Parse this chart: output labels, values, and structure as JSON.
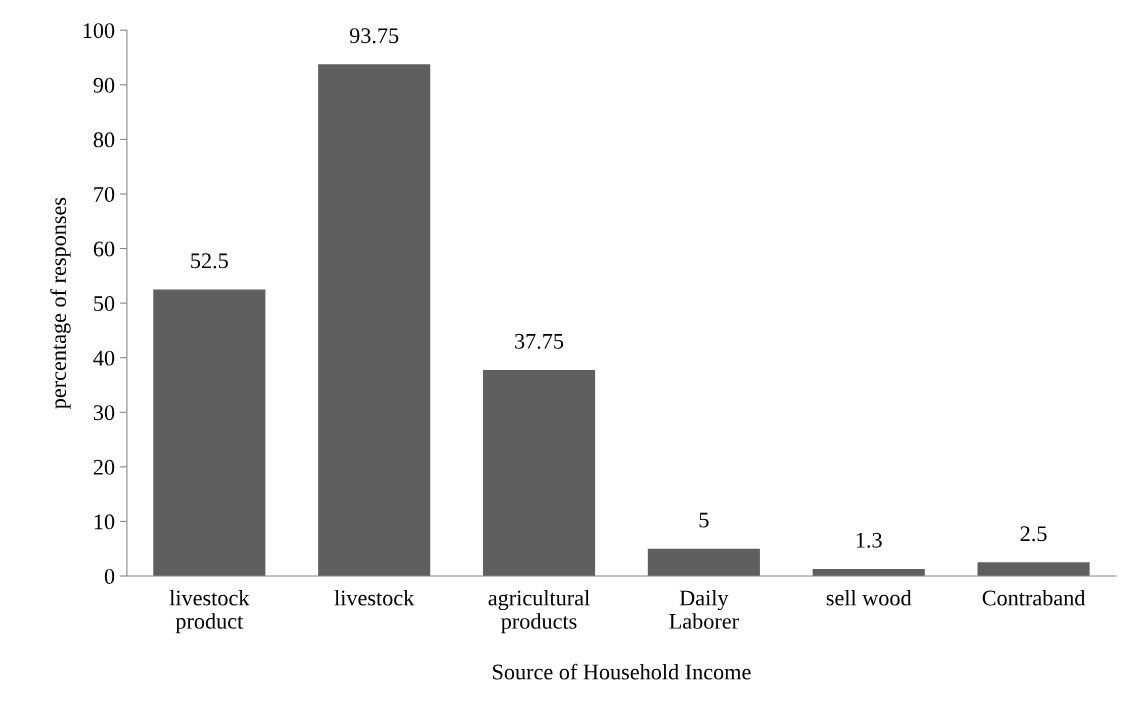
{
  "chart_data": {
    "type": "bar",
    "xlabel": "Source of Household Income",
    "ylabel": "percentage of responses",
    "categories": [
      "livestock\nproduct",
      "livestock",
      "agricultural\nproducts",
      "Daily\nLaborer",
      "sell wood",
      "Contraband"
    ],
    "values": [
      52.5,
      93.75,
      37.75,
      5,
      1.3,
      2.5
    ],
    "color": "#5f5f5f",
    "ylim": [
      0,
      100
    ],
    "yticks": [
      0,
      10,
      20,
      30,
      40,
      50,
      60,
      70,
      80,
      90,
      100
    ],
    "data_labels": true,
    "grid": false,
    "legend": false
  }
}
